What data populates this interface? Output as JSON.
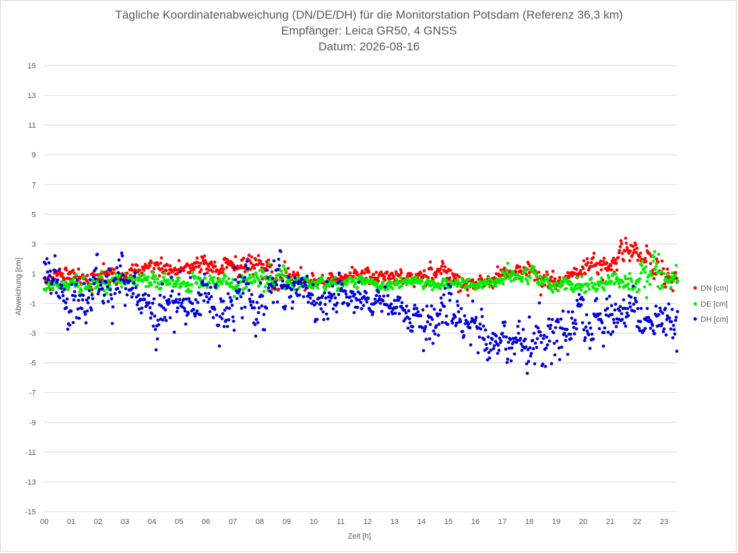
{
  "chart_data": {
    "type": "scatter",
    "title": "Tägliche Koordinatenabweichung (DN/DE/DH) für die Monitorstation Potsdam (Referenz 36,3 km)",
    "subtitle": "Empfänger: Leica GR50, 4 GNSS",
    "date_line": "Datum: 2026-08-16",
    "xlabel": "Zeit [h]",
    "ylabel": "Abweichung [cm]",
    "ylim": [
      -15,
      15
    ],
    "xlim": [
      0,
      24
    ],
    "y_ticks": [
      "15",
      "13",
      "11",
      "9",
      "7",
      "5",
      "3",
      "1",
      "-1",
      "-3",
      "-5",
      "-7",
      "-9",
      "-11",
      "-13",
      "-15"
    ],
    "x_ticks": [
      "00",
      "01",
      "02",
      "03",
      "04",
      "05",
      "06",
      "07",
      "08",
      "09",
      "10",
      "11",
      "12",
      "13",
      "14",
      "15",
      "16",
      "17",
      "18",
      "19",
      "20",
      "21",
      "22",
      "23"
    ],
    "grid": "horizontal",
    "legend_position": "right",
    "points_per_hour": 40,
    "series": [
      {
        "name": "DN [cm]",
        "color": "#ff0000",
        "hourly_mean": [
          0.8,
          1.0,
          0.4,
          0.9,
          1.6,
          1.3,
          1.5,
          1.6,
          1.5,
          0.7,
          0.4,
          0.8,
          0.9,
          0.7,
          1.0,
          0.8,
          0.2,
          0.9,
          1.2,
          0.3,
          1.3,
          2.0,
          2.6,
          0.8
        ],
        "hourly_spread": [
          0.5,
          0.5,
          0.6,
          0.4,
          0.5,
          0.5,
          0.5,
          0.8,
          0.7,
          0.5,
          0.3,
          0.4,
          0.4,
          0.4,
          0.6,
          0.5,
          0.4,
          0.4,
          0.6,
          0.4,
          0.8,
          0.7,
          0.7,
          0.5
        ]
      },
      {
        "name": "DE [cm]",
        "color": "#00ee00",
        "hourly_mean": [
          0.3,
          0.2,
          0.4,
          0.5,
          0.4,
          0.4,
          0.3,
          0.4,
          0.6,
          0.5,
          0.3,
          0.4,
          0.4,
          0.2,
          0.3,
          0.3,
          0.3,
          0.6,
          0.8,
          0.2,
          0.2,
          0.4,
          0.5,
          0.6
        ],
        "hourly_spread": [
          0.3,
          0.4,
          0.5,
          0.3,
          0.5,
          0.5,
          0.4,
          0.7,
          0.8,
          0.5,
          0.4,
          0.3,
          0.3,
          0.3,
          0.3,
          0.3,
          0.3,
          0.5,
          0.4,
          0.4,
          0.4,
          0.5,
          1.0,
          0.6
        ]
      },
      {
        "name": "DH [cm]",
        "color": "#0000dd",
        "hourly_mean": [
          1.0,
          -1.5,
          0.2,
          0.5,
          -1.8,
          -1.2,
          -1.0,
          -1.0,
          -0.8,
          0.4,
          -1.0,
          -0.6,
          -0.8,
          -0.8,
          -2.5,
          -1.0,
          -2.5,
          -3.6,
          -4.0,
          -3.0,
          -2.0,
          -1.8,
          -1.6,
          -2.5
        ],
        "hourly_spread": [
          1.2,
          1.4,
          1.2,
          0.9,
          1.4,
          1.2,
          1.3,
          1.6,
          1.5,
          0.9,
          1.0,
          0.7,
          0.7,
          0.7,
          1.1,
          1.0,
          1.2,
          1.2,
          1.6,
          1.3,
          1.2,
          1.3,
          1.3,
          1.4
        ]
      }
    ]
  }
}
